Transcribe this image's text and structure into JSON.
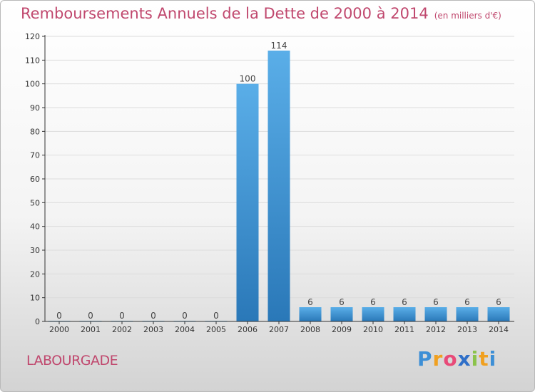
{
  "header": {
    "title": "Remboursements Annuels de la Dette de 2000 à 2014",
    "unit": "(en milliers d'€)"
  },
  "commune": "LABOURGADE",
  "logo": {
    "text": "Proxiti",
    "letters": [
      "P",
      "r",
      "o",
      "x",
      "i",
      "t",
      "i"
    ],
    "colors": [
      "#3d8fd6",
      "#f0a020",
      "#e84a78",
      "#2f6fc8",
      "#8bc34a",
      "#f0a020",
      "#3d8fd6"
    ]
  },
  "colors": {
    "bar_light": "#5aaee8",
    "bar_dark": "#2a78b8",
    "grid": "#dcdcdc",
    "axis": "#333333",
    "title": "#c0486e"
  },
  "chart_data": {
    "type": "bar",
    "title": "Remboursements Annuels de la Dette de 2000 à 2014",
    "xlabel": "",
    "ylabel": "",
    "categories": [
      "2000",
      "2001",
      "2002",
      "2003",
      "2004",
      "2005",
      "2006",
      "2007",
      "2008",
      "2009",
      "2010",
      "2011",
      "2012",
      "2013",
      "2014"
    ],
    "values": [
      0,
      0,
      0,
      0,
      0,
      0,
      100,
      114,
      6,
      6,
      6,
      6,
      6,
      6,
      6
    ],
    "ylim": [
      0,
      120
    ],
    "yticks": [
      0,
      10,
      20,
      30,
      40,
      50,
      60,
      70,
      80,
      90,
      100,
      110,
      120
    ],
    "grid": true,
    "legend": "none"
  }
}
